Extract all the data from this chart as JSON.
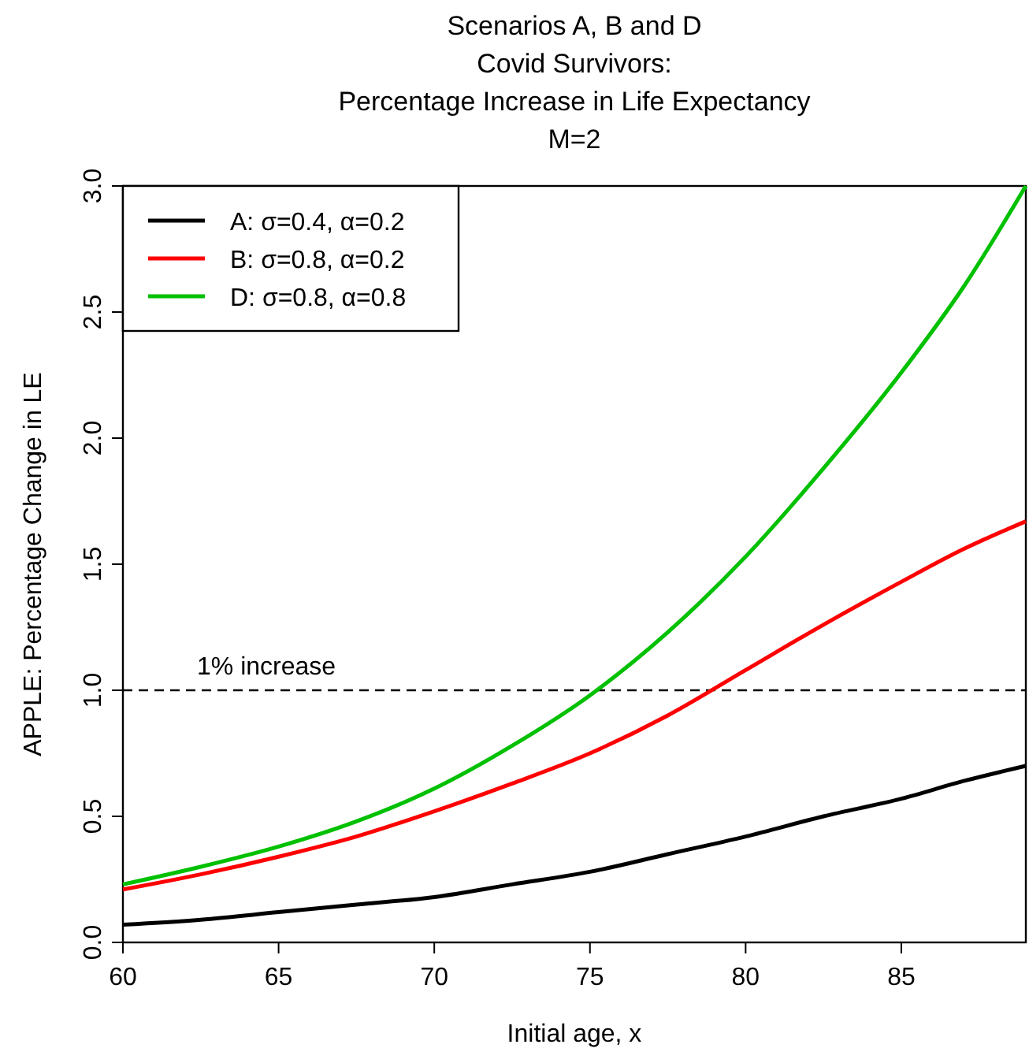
{
  "chart_data": {
    "type": "line",
    "title": "Scenarios A, B and D\nCovid Survivors:\nPercentage Increase in Life Expectancy\nM=2",
    "xlabel": "Initial age, x",
    "ylabel": "APPLE: Percentage Change in LE",
    "x": [
      60,
      62.5,
      65,
      67.5,
      70,
      72.5,
      75,
      77.5,
      80,
      82.5,
      85,
      87,
      89
    ],
    "series": [
      {
        "name": "A: σ=0.4, α=0.2",
        "color": "#000000",
        "values": [
          0.07,
          0.09,
          0.12,
          0.15,
          0.18,
          0.23,
          0.28,
          0.35,
          0.42,
          0.5,
          0.57,
          0.64,
          0.7
        ]
      },
      {
        "name": "B: σ=0.8, α=0.2",
        "color": "#ff0000",
        "values": [
          0.21,
          0.27,
          0.34,
          0.42,
          0.52,
          0.63,
          0.75,
          0.9,
          1.08,
          1.26,
          1.43,
          1.56,
          1.67
        ]
      },
      {
        "name": "D: σ=0.8, α=0.8",
        "color": "#00c000",
        "values": [
          0.23,
          0.3,
          0.38,
          0.48,
          0.61,
          0.78,
          0.98,
          1.23,
          1.53,
          1.88,
          2.26,
          2.6,
          3.0
        ]
      }
    ],
    "xlim": [
      60,
      89
    ],
    "ylim": [
      0,
      3
    ],
    "xticks": [
      60,
      65,
      70,
      75,
      80,
      85
    ],
    "yticks": [
      {
        "value": 0,
        "label": "0.0"
      },
      0.5,
      {
        "value": 1,
        "label": "1.0"
      },
      1.5,
      {
        "value": 2,
        "label": "2.0"
      },
      2.5,
      {
        "value": 3,
        "label": "3.0"
      }
    ],
    "ref_lines": [
      {
        "axis": "y",
        "value": 1,
        "label": "1% increase",
        "color": "#000000",
        "line_style": "dashed"
      }
    ],
    "grid": false,
    "legend": "top left",
    "marker": "none",
    "line_style": "solid"
  }
}
